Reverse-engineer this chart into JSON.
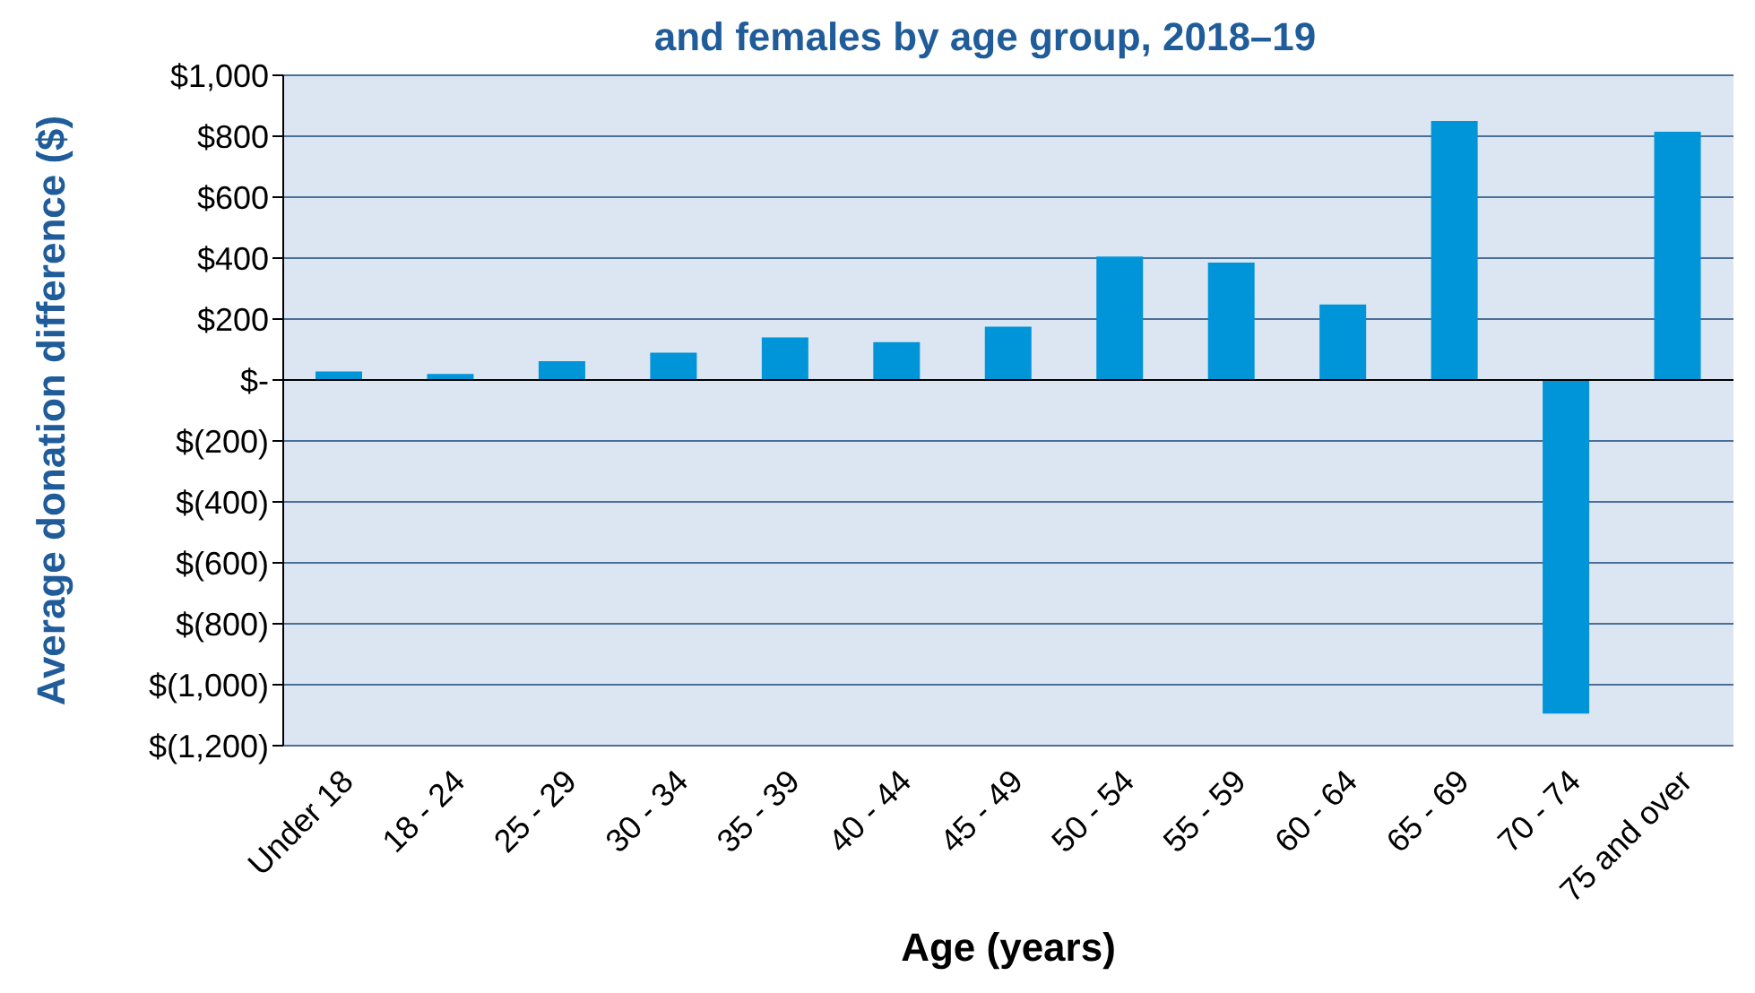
{
  "chart_data": {
    "type": "bar",
    "title": "and females by age group, 2018–19",
    "xlabel": "Age (years)",
    "ylabel": "Average donation difference ($)",
    "categories": [
      "Under 18",
      "18 - 24",
      "25 - 29",
      "30 - 34",
      "35 - 39",
      "40 - 44",
      "45 - 49",
      "50 - 54",
      "55 - 59",
      "60 - 64",
      "65 - 69",
      "70 - 74",
      "75 and over"
    ],
    "values": [
      28,
      20,
      62,
      90,
      140,
      124,
      175,
      405,
      385,
      248,
      850,
      -1095,
      815
    ],
    "color": "#0095d9",
    "ylim": [
      -1200,
      1000
    ],
    "yticks": [
      {
        "value": -1200,
        "label": "$(1,200)"
      },
      {
        "value": -1000,
        "label": "$(1,000)"
      },
      {
        "value": -800,
        "label": "$(800)"
      },
      {
        "value": -600,
        "label": "$(600)"
      },
      {
        "value": -400,
        "label": "$(400)"
      },
      {
        "value": -200,
        "label": "$(200)"
      },
      {
        "value": 0,
        "label": "$-"
      },
      {
        "value": 200,
        "label": "$200"
      },
      {
        "value": 400,
        "label": "$400"
      },
      {
        "value": 600,
        "label": "$600"
      },
      {
        "value": 800,
        "label": "$800"
      },
      {
        "value": 1000,
        "label": "$1,000"
      }
    ],
    "grid": "y"
  }
}
